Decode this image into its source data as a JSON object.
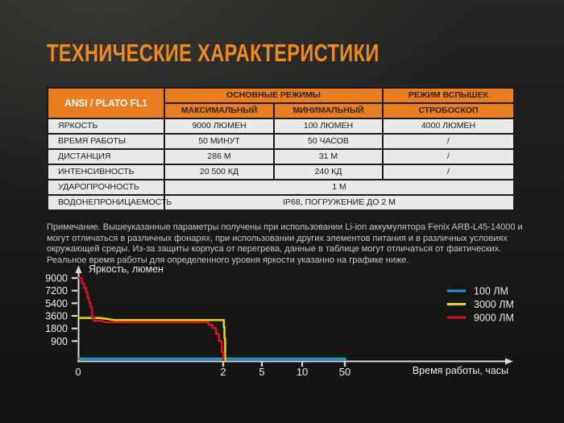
{
  "page": {
    "title": "ТЕХНИЧЕСКИЕ ХАРАКТЕРИСТИКИ"
  },
  "table": {
    "corner": "ANSI / PLATO FL1",
    "group_main": "ОСНОВНЫЕ РЕЖИМЫ",
    "group_flash": "РЕЖИМ ВСПЫШЕК",
    "col_max": "МАКСИМАЛЬНЫЙ",
    "col_min": "МИНИМАЛЬНЫЙ",
    "col_strobe": "СТРОБОСКОП",
    "rows": [
      {
        "label": "ЯРКОСТЬ",
        "span": false,
        "values": [
          "9000 ЛЮМЕН",
          "100 ЛЮМЕН",
          "4000 ЛЮМЕН"
        ]
      },
      {
        "label": "ВРЕМЯ РАБОТЫ",
        "span": false,
        "values": [
          "50 МИНУТ",
          "50 ЧАСОВ",
          "/"
        ]
      },
      {
        "label": "ДИСТАНЦИЯ",
        "span": false,
        "values": [
          "286 М",
          "31 М",
          "/"
        ]
      },
      {
        "label": "ИНТЕНСИВНОСТЬ",
        "span": false,
        "values": [
          "20 500 КД",
          "240 КД",
          "/"
        ]
      },
      {
        "label": "УДАРОПРОЧНОСТЬ",
        "span": true,
        "values": [
          "1 М"
        ]
      },
      {
        "label": "ВОДОНЕПРОНИЦАЕМОСТЬ",
        "span": true,
        "values": [
          "IP68, ПОГРУЖЕНИЕ ДО 2 М"
        ]
      }
    ]
  },
  "note": {
    "text": "Примечание. Вышеуказанные параметры получены при использовании Li-ion аккумулятора Fenix ARB-L45-14000 и могут отличаться в различных фонарях, при использовании других элементов питания и в различных условиях окружающей среды. Из-за защиты корпуса от перегрева, данные в таблице могут отличаться от фактических. Реальное время работы для определенного уровня яркости указанно на графике ниже."
  },
  "chart_data": {
    "type": "line",
    "title": "",
    "ylabel": "Яркость, люмен",
    "xlabel": "Время работы, часы",
    "x_unit": "hours",
    "y_unit": "lumens",
    "yticks": [
      900,
      1800,
      3600,
      5400,
      7200,
      9000
    ],
    "xticks": [
      0,
      2,
      5,
      10,
      50
    ],
    "ylim": [
      0,
      9000
    ],
    "xlim": [
      0,
      50
    ],
    "x_scale": "piecewise-compressed",
    "grid": false,
    "legend_position": "right",
    "series": [
      {
        "name": "100 ЛМ",
        "color": "#1E9CD8",
        "points": [
          [
            0,
            100
          ],
          [
            50,
            100
          ],
          [
            50,
            0
          ]
        ]
      },
      {
        "name": "3000 ЛМ",
        "color": "#E3DC00",
        "points": [
          [
            0,
            3300
          ],
          [
            0.3,
            3300
          ],
          [
            0.5,
            3000
          ],
          [
            2.05,
            3000
          ],
          [
            2.05,
            2000
          ],
          [
            2.1,
            2000
          ],
          [
            2.1,
            1100
          ],
          [
            2.15,
            1100
          ],
          [
            2.15,
            0
          ]
        ]
      },
      {
        "name": "9000 ЛМ",
        "color": "#D5112B",
        "points": [
          [
            0,
            9000
          ],
          [
            0.05,
            9000
          ],
          [
            0.05,
            8300
          ],
          [
            0.08,
            8300
          ],
          [
            0.08,
            7600
          ],
          [
            0.11,
            7600
          ],
          [
            0.11,
            6900
          ],
          [
            0.13,
            6900
          ],
          [
            0.13,
            6200
          ],
          [
            0.15,
            6200
          ],
          [
            0.15,
            5500
          ],
          [
            0.17,
            5500
          ],
          [
            0.17,
            4900
          ],
          [
            0.19,
            4900
          ],
          [
            0.19,
            3400
          ],
          [
            0.22,
            3400
          ],
          [
            0.22,
            2900
          ],
          [
            0.32,
            2900
          ],
          [
            0.38,
            2700
          ],
          [
            1.8,
            2700
          ],
          [
            1.8,
            2300
          ],
          [
            1.85,
            2300
          ],
          [
            1.85,
            1900
          ],
          [
            1.9,
            1900
          ],
          [
            1.9,
            1400
          ],
          [
            1.94,
            1400
          ],
          [
            1.94,
            900
          ],
          [
            1.98,
            900
          ],
          [
            1.98,
            400
          ],
          [
            2.02,
            400
          ],
          [
            2.02,
            0
          ]
        ]
      }
    ]
  },
  "colors": {
    "title_orange": "#EF8A1E",
    "header_orange": "#E87D22",
    "table_body_bg": "#E9E9E8",
    "table_border": "#1B1B1B",
    "note_text": "#C9C7C4",
    "axis": "#D8D8D8",
    "chart_text": "#ECECEC",
    "line_blue": "#1E9CD8",
    "line_yellow": "#E3DC00",
    "line_red": "#D5112B"
  }
}
